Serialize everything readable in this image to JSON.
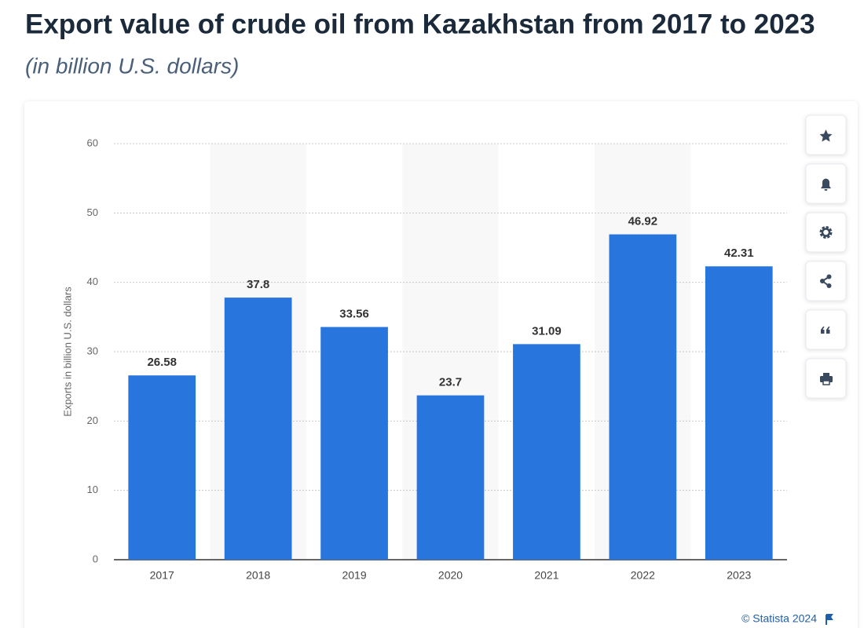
{
  "chart_data": {
    "type": "bar",
    "title": "Export value of crude oil from Kazakhstan from 2017 to 2023",
    "subtitle": "(in billion U.S. dollars)",
    "y_label": "Exports in billion U.S. dollars",
    "categories": [
      "2017",
      "2018",
      "2019",
      "2020",
      "2021",
      "2022",
      "2023"
    ],
    "values": [
      26.58,
      37.8,
      33.56,
      23.7,
      31.09,
      46.92,
      42.31
    ],
    "color": "#2876dd",
    "ylim": [
      0,
      60
    ],
    "yticks": [
      0,
      10,
      20,
      30,
      40,
      50,
      60
    ],
    "grid": true,
    "credit": "© Statista 2024"
  }
}
